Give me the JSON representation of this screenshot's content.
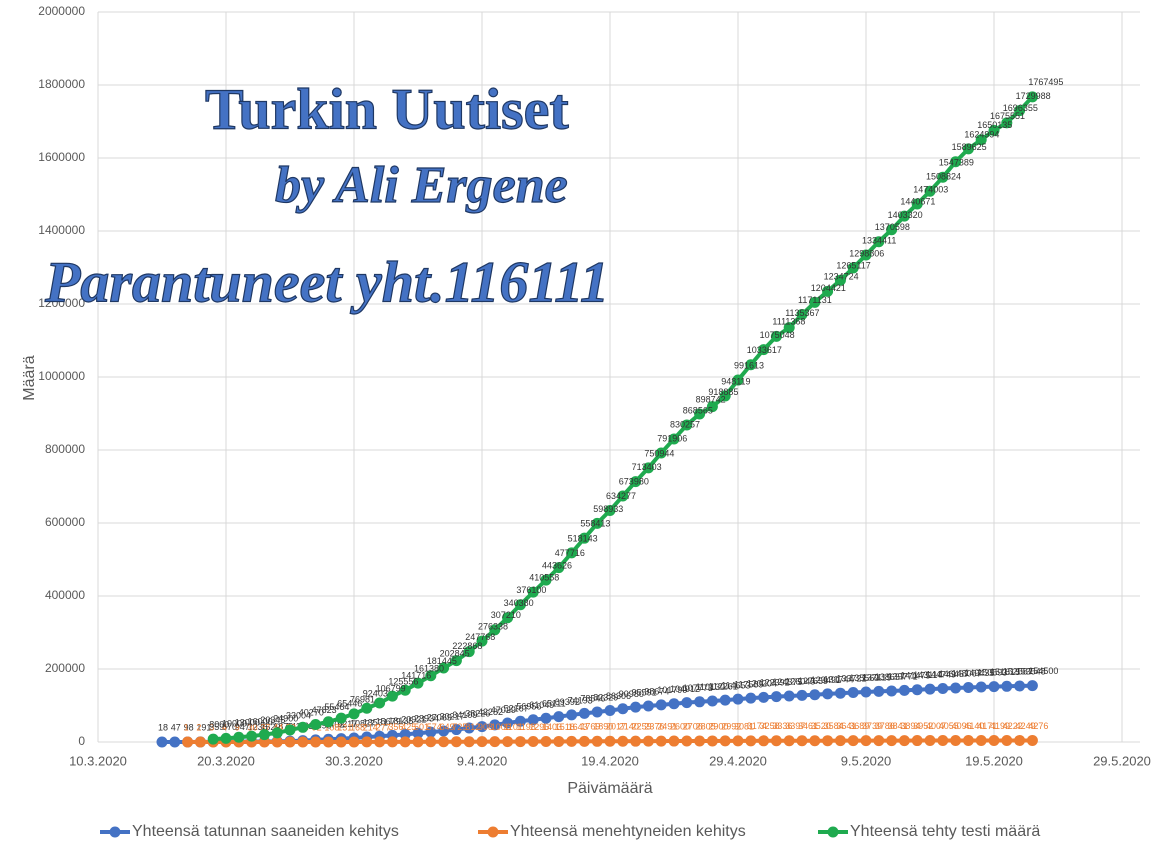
{
  "chart_data": {
    "type": "line",
    "annotations": [
      "Turkin Uutiset",
      "by Ali Ergene",
      "Parantuneet yht.116111"
    ],
    "x_label": "Päivämäärä",
    "y_label": "Määrä",
    "x": [
      "2020-03-15",
      "2020-03-16",
      "2020-03-17",
      "2020-03-18",
      "2020-03-19",
      "2020-03-20",
      "2020-03-21",
      "2020-03-22",
      "2020-03-23",
      "2020-03-24",
      "2020-03-25",
      "2020-03-26",
      "2020-03-27",
      "2020-03-28",
      "2020-03-29",
      "2020-03-30",
      "2020-03-31",
      "2020-04-01",
      "2020-04-02",
      "2020-04-03",
      "2020-04-04",
      "2020-04-05",
      "2020-04-06",
      "2020-04-07",
      "2020-04-08",
      "2020-04-09",
      "2020-04-10",
      "2020-04-11",
      "2020-04-12",
      "2020-04-13",
      "2020-04-14",
      "2020-04-15",
      "2020-04-16",
      "2020-04-17",
      "2020-04-18",
      "2020-04-19",
      "2020-04-20",
      "2020-04-21",
      "2020-04-22",
      "2020-04-23",
      "2020-04-24",
      "2020-04-25",
      "2020-04-26",
      "2020-04-27",
      "2020-04-28",
      "2020-04-29",
      "2020-04-30",
      "2020-05-01",
      "2020-05-02",
      "2020-05-03",
      "2020-05-04",
      "2020-05-05",
      "2020-05-06",
      "2020-05-07",
      "2020-05-08",
      "2020-05-09",
      "2020-05-10",
      "2020-05-11",
      "2020-05-12",
      "2020-05-13",
      "2020-05-14",
      "2020-05-15",
      "2020-05-16",
      "2020-05-17",
      "2020-05-18",
      "2020-05-19",
      "2020-05-20",
      "2020-05-21",
      "2020-05-22"
    ],
    "series": [
      {
        "name": "Yhteensä tatunnan saaneiden kehitys",
        "color": "#4472c4",
        "values": [
          18,
          47,
          98,
          191,
          359,
          670,
          947,
          1236,
          1529,
          1872,
          2433,
          3629,
          5698,
          7402,
          9217,
          10827,
          13531,
          15679,
          18135,
          20921,
          23934,
          27069,
          30217,
          34109,
          38226,
          42282,
          47029,
          52167,
          56956,
          61049,
          65111,
          69392,
          74193,
          78546,
          82329,
          86306,
          90980,
          95591,
          98674,
          101790,
          104912,
          107773,
          110130,
          112261,
          114653,
          117589,
          120204,
          122392,
          124375,
          126045,
          127659,
          129491,
          131744,
          133721,
          135569,
          137115,
          138657,
          139771,
          141475,
          143114,
          144749,
          146457,
          148067,
          149435,
          150593,
          151615,
          152587,
          153548,
          154500
        ]
      },
      {
        "name": "Yhteensä menehtyneiden kehitys",
        "color": "#ed7d31",
        "values": [
          null,
          null,
          1,
          2,
          3,
          4,
          9,
          30,
          37,
          44,
          59,
          75,
          92,
          108,
          131,
          168,
          214,
          277,
          356,
          425,
          501,
          574,
          649,
          725,
          812,
          908,
          1006,
          1101,
          1198,
          1296,
          1403,
          1518,
          1643,
          1769,
          1890,
          2017,
          2140,
          2259,
          2376,
          2491,
          2600,
          2706,
          2805,
          2900,
          2992,
          3081,
          3174,
          3258,
          3336,
          3397,
          3461,
          3520,
          3584,
          3641,
          3689,
          3739,
          3786,
          3841,
          3894,
          3952,
          4007,
          4055,
          4096,
          4140,
          4171,
          4199,
          4222,
          4249,
          4276
        ]
      },
      {
        "name": "Yhteensä tehty testi määrä",
        "color": "#1faa4f",
        "values": [
          null,
          null,
          null,
          null,
          8000,
          10000,
          13000,
          16000,
          20345,
          24900,
          33004,
          40270,
          47823,
          55464,
          65446,
          76981,
          92403,
          106799,
          125556,
          141716,
          161380,
          181445,
          202845,
          222868,
          247768,
          276338,
          307210,
          340380,
          376100,
          410558,
          443626,
          477716,
          518143,
          558413,
          598933,
          634277,
          673980,
          713403,
          750944,
          791906,
          830257,
          868565,
          898742,
          918885,
          948119,
          991613,
          1033617,
          1075048,
          1111368,
          1135367,
          1171131,
          1204421,
          1234724,
          1265117,
          1298806,
          1334411,
          1370598,
          1403320,
          1440671,
          1474003,
          1508824,
          1547389,
          1589625,
          1624994,
          1650135,
          1675551,
          1696355,
          1729988,
          1767495
        ]
      }
    ],
    "xlim": [
      "2020-03-10",
      "2020-05-29"
    ],
    "xticks": [
      {
        "value": "2020-03-10",
        "label": "10.3.2020"
      },
      {
        "value": "2020-03-20",
        "label": "20.3.2020"
      },
      {
        "value": "2020-03-30",
        "label": "30.3.2020"
      },
      {
        "value": "2020-04-09",
        "label": "9.4.2020"
      },
      {
        "value": "2020-04-19",
        "label": "19.4.2020"
      },
      {
        "value": "2020-04-29",
        "label": "29.4.2020"
      },
      {
        "value": "2020-05-09",
        "label": "9.5.2020"
      },
      {
        "value": "2020-05-19",
        "label": "19.5.2020"
      },
      {
        "value": "2020-05-29",
        "label": "29.5.2020"
      }
    ],
    "ylim": [
      0,
      2000000
    ],
    "yticks": [
      0,
      200000,
      400000,
      600000,
      800000,
      1000000,
      1200000,
      1400000,
      1600000,
      1800000,
      2000000
    ],
    "grid": true,
    "data_labels": true,
    "legend": "bottom"
  }
}
